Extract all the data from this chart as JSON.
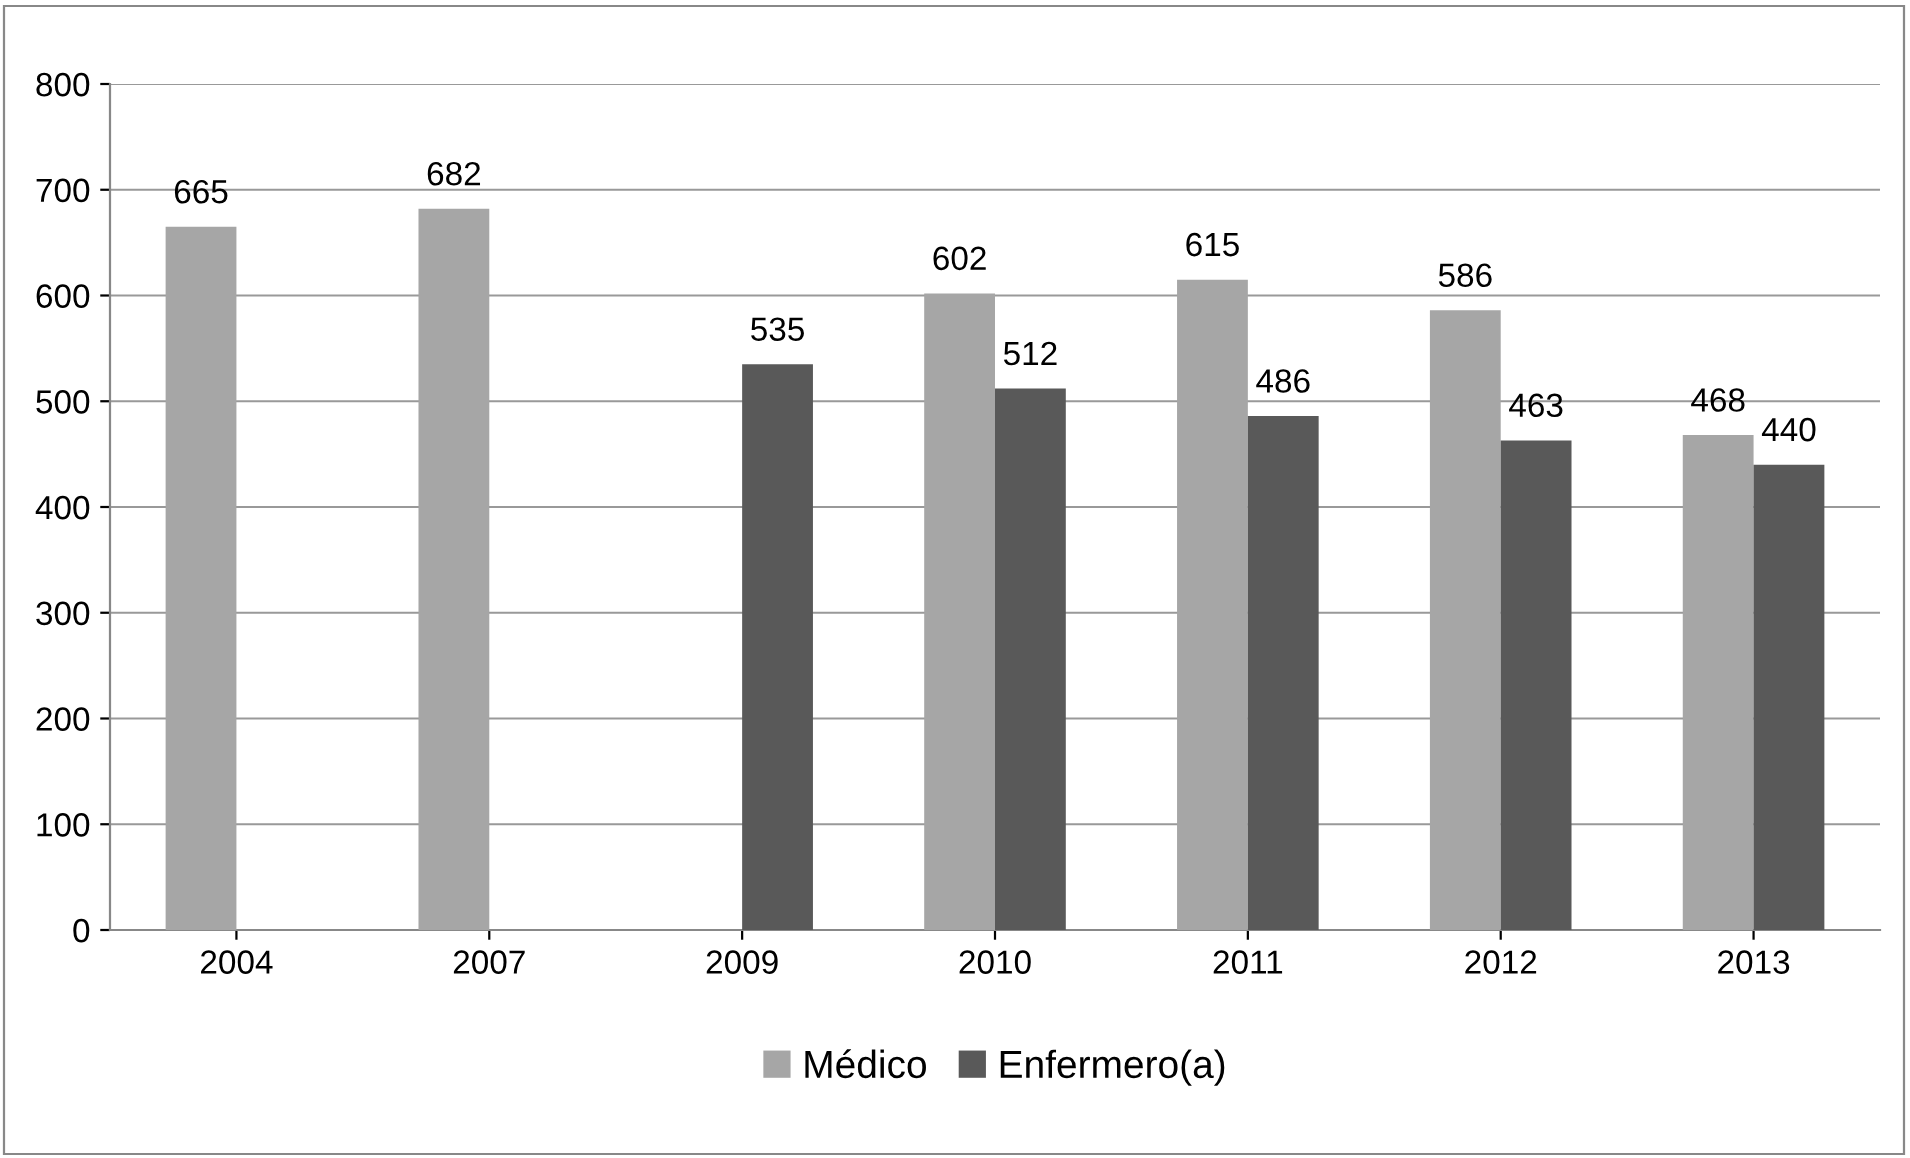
{
  "chart_data": {
    "type": "bar",
    "categories": [
      "2004",
      "2007",
      "2009",
      "2010",
      "2011",
      "2012",
      "2013"
    ],
    "series": [
      {
        "name": "Médico",
        "color": "#a6a6a6",
        "values": [
          665,
          682,
          null,
          602,
          615,
          586,
          468
        ]
      },
      {
        "name": "Enfermero(a)",
        "color": "#595959",
        "values": [
          null,
          null,
          535,
          512,
          486,
          463,
          440
        ]
      }
    ],
    "ylim": [
      0,
      800
    ],
    "yticks": [
      0,
      100,
      200,
      300,
      400,
      500,
      600,
      700,
      800
    ],
    "grid": "y",
    "legend": "bottom",
    "data_labels": true
  }
}
